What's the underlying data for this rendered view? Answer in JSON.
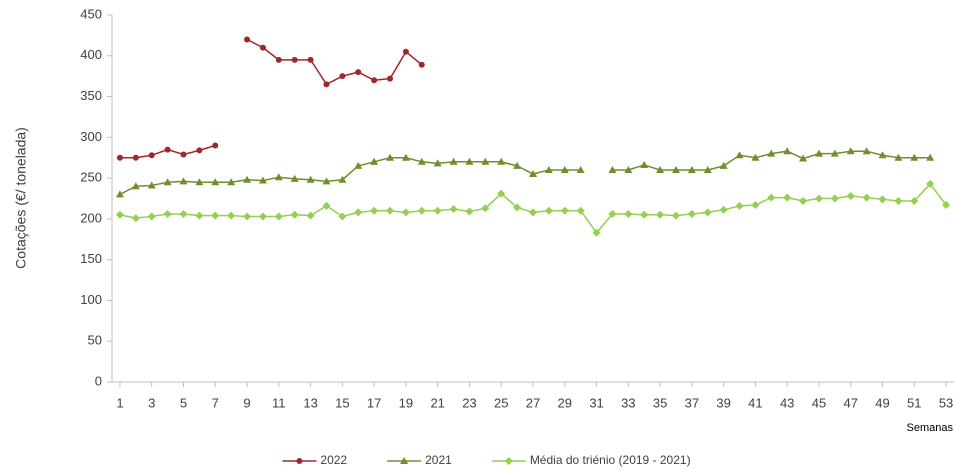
{
  "chart_data": {
    "type": "line",
    "y_label": "Cotações (€/ tonelada)",
    "x_label": "Semanas",
    "x": [
      1,
      2,
      3,
      4,
      5,
      6,
      7,
      8,
      9,
      10,
      11,
      12,
      13,
      14,
      15,
      16,
      17,
      18,
      19,
      20,
      21,
      22,
      23,
      24,
      25,
      26,
      27,
      28,
      29,
      30,
      31,
      32,
      33,
      34,
      35,
      36,
      37,
      38,
      39,
      40,
      41,
      42,
      43,
      44,
      45,
      46,
      47,
      48,
      49,
      50,
      51,
      52,
      53
    ],
    "xlim": [
      0.5,
      53.5
    ],
    "xticks": [
      1,
      3,
      5,
      7,
      9,
      11,
      13,
      15,
      17,
      19,
      21,
      23,
      25,
      27,
      29,
      31,
      33,
      35,
      37,
      39,
      41,
      43,
      45,
      47,
      49,
      51,
      53
    ],
    "ylim": [
      0,
      450
    ],
    "yticks": [
      0,
      50,
      100,
      150,
      200,
      250,
      300,
      350,
      400,
      450
    ],
    "legend": "bottom",
    "series": [
      {
        "name": "2022",
        "color": "#a0282b",
        "marker": "circle",
        "values": [
          275,
          275,
          278,
          285,
          279,
          284,
          290,
          null,
          420,
          410,
          395,
          395,
          395,
          365,
          375,
          380,
          370,
          372,
          405,
          389,
          null,
          null,
          null,
          null,
          null,
          null,
          null,
          null,
          null,
          null,
          null,
          null,
          null,
          null,
          null,
          null,
          null,
          null,
          null,
          null,
          null,
          null,
          null,
          null,
          null,
          null,
          null,
          null,
          null,
          null,
          null,
          null,
          null
        ]
      },
      {
        "name": "2021",
        "color": "#6f8f2f",
        "marker": "triangle",
        "values": [
          230,
          240,
          241,
          245,
          246,
          245,
          245,
          245,
          248,
          247,
          251,
          249,
          248,
          246,
          248,
          265,
          270,
          275,
          275,
          270,
          268,
          270,
          270,
          270,
          270,
          265,
          255,
          260,
          260,
          260,
          null,
          260,
          260,
          266,
          260,
          260,
          260,
          260,
          265,
          278,
          275,
          280,
          283,
          274,
          280,
          280,
          283,
          283,
          278,
          275,
          275,
          275,
          null
        ]
      },
      {
        "name": "Média do triénio (2019 - 2021)",
        "color": "#92d050",
        "marker": "diamond",
        "values": [
          205,
          201,
          203,
          206,
          206,
          204,
          204,
          204,
          203,
          203,
          203,
          205,
          204,
          216,
          203,
          208,
          210,
          210,
          208,
          210,
          210,
          212,
          209,
          213,
          231,
          214,
          208,
          210,
          210,
          210,
          183,
          206,
          206,
          205,
          205,
          204,
          206,
          208,
          211,
          216,
          217,
          226,
          226,
          222,
          225,
          225,
          228,
          226,
          224,
          222,
          222,
          243,
          217
        ]
      }
    ]
  }
}
